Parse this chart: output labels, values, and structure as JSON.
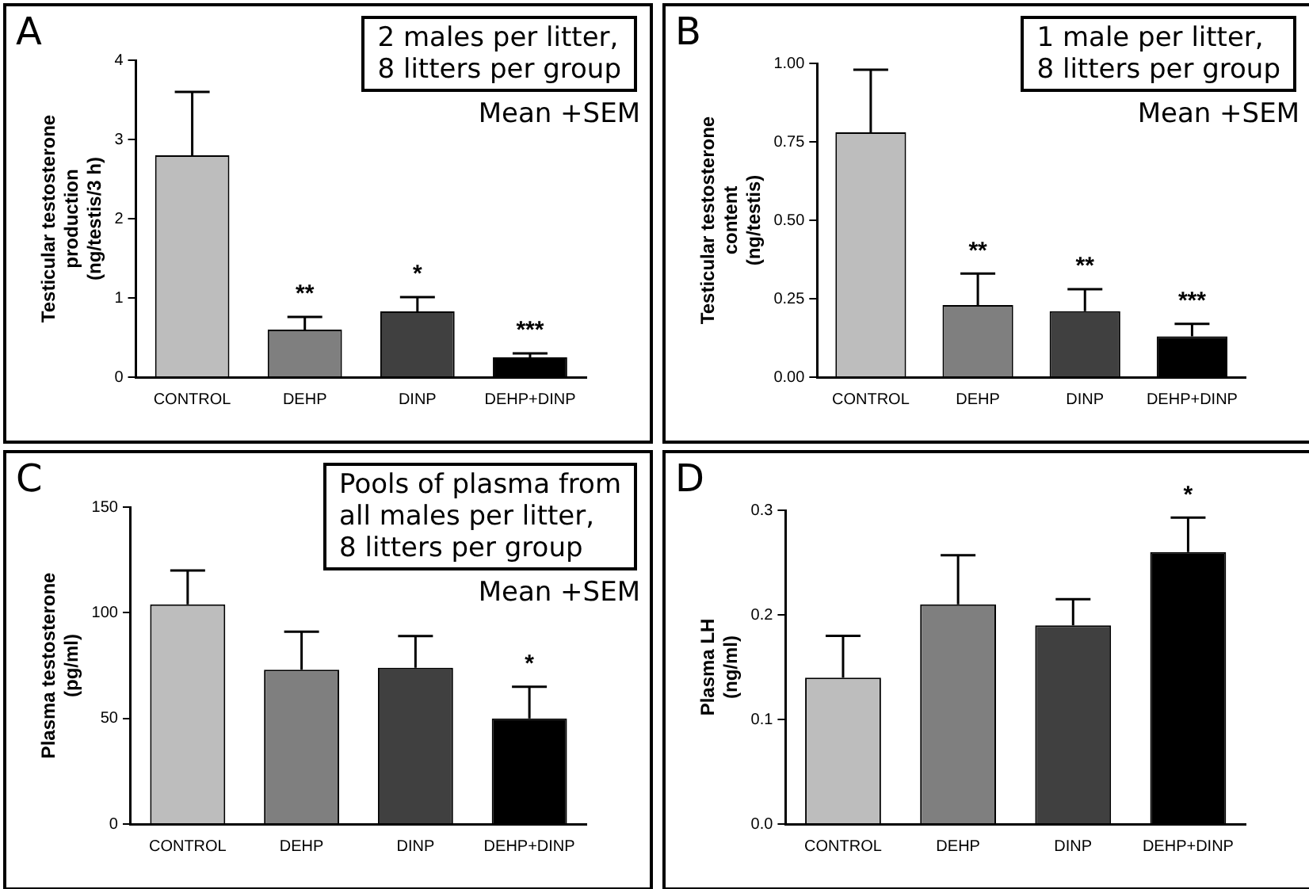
{
  "chart_data": [
    {
      "type": "bar",
      "title": "A",
      "ylabel": "Testicular testosterone\nproduction\n(ng/testis/3 h)",
      "categories": [
        "CONTROL",
        "DEHP",
        "DINP",
        "DEHP+DINP"
      ],
      "values": [
        2.8,
        0.6,
        0.83,
        0.25
      ],
      "colors": [
        "#bdbdbd",
        "#7f7f7f",
        "#404040",
        "#000000"
      ],
      "errors": [
        [
          2.8,
          3.6
        ],
        [
          0.6,
          0.76
        ],
        [
          0.83,
          1.01
        ],
        [
          0.25,
          0.3
        ]
      ],
      "ylim": [
        0,
        4
      ],
      "yticks": [
        0,
        1,
        2,
        3,
        4
      ],
      "grid": false,
      "legend": false,
      "value_labels": [
        null,
        "**",
        "*",
        "***"
      ],
      "annotations": [
        "2 males per litter,\n8 litters per group",
        "Mean +SEM"
      ]
    },
    {
      "type": "bar",
      "title": "B",
      "ylabel": "Testicular testosterone\ncontent\n(ng/testis)",
      "categories": [
        "CONTROL",
        "DEHP",
        "DINP",
        "DEHP+DINP"
      ],
      "values": [
        0.78,
        0.23,
        0.21,
        0.13
      ],
      "colors": [
        "#bdbdbd",
        "#7f7f7f",
        "#404040",
        "#000000"
      ],
      "errors": [
        [
          0.78,
          0.98
        ],
        [
          0.23,
          0.33
        ],
        [
          0.21,
          0.28
        ],
        [
          0.13,
          0.17
        ]
      ],
      "ylim": [
        0,
        1
      ],
      "yticks": [
        {
          "value": 0,
          "label": "0.00"
        },
        {
          "value": 0.25,
          "label": "0.25"
        },
        {
          "value": 0.5,
          "label": "0.50"
        },
        {
          "value": 0.75,
          "label": "0.75"
        },
        {
          "value": 1,
          "label": "1.00"
        }
      ],
      "grid": false,
      "legend": false,
      "value_labels": [
        null,
        "**",
        "**",
        "***"
      ],
      "annotations": [
        "1 male per litter,\n8 litters per group",
        "Mean +SEM"
      ]
    },
    {
      "type": "bar",
      "title": "C",
      "ylabel": "Plasma testosterone\n(pg/ml)",
      "categories": [
        "CONTROL",
        "DEHP",
        "DINP",
        "DEHP+DINP"
      ],
      "values": [
        104,
        73,
        74,
        50
      ],
      "colors": [
        "#bdbdbd",
        "#7f7f7f",
        "#404040",
        "#000000"
      ],
      "errors": [
        [
          104,
          120
        ],
        [
          73,
          91
        ],
        [
          74,
          89
        ],
        [
          50,
          65
        ]
      ],
      "ylim": [
        0,
        150
      ],
      "yticks": [
        0,
        50,
        100,
        150
      ],
      "grid": false,
      "legend": false,
      "value_labels": [
        null,
        null,
        null,
        "*"
      ],
      "annotations": [
        "Pools of plasma from\nall males per litter,\n8 litters per group",
        "Mean +SEM"
      ]
    },
    {
      "type": "bar",
      "title": "D",
      "ylabel": "Plasma LH\n(ng/ml)",
      "categories": [
        "CONTROL",
        "DEHP",
        "DINP",
        "DEHP+DINP"
      ],
      "values": [
        0.14,
        0.21,
        0.19,
        0.26
      ],
      "colors": [
        "#bdbdbd",
        "#7f7f7f",
        "#404040",
        "#000000"
      ],
      "errors": [
        [
          0.14,
          0.18
        ],
        [
          0.21,
          0.257
        ],
        [
          0.19,
          0.215
        ],
        [
          0.26,
          0.293
        ]
      ],
      "ylim": [
        0,
        0.3
      ],
      "yticks": [
        {
          "value": 0,
          "label": "0.0"
        },
        {
          "value": 0.1,
          "label": "0.1"
        },
        {
          "value": 0.2,
          "label": "0.2"
        },
        {
          "value": 0.3,
          "label": "0.3"
        }
      ],
      "grid": false,
      "legend": false,
      "value_labels": [
        null,
        null,
        null,
        "*"
      ]
    }
  ]
}
